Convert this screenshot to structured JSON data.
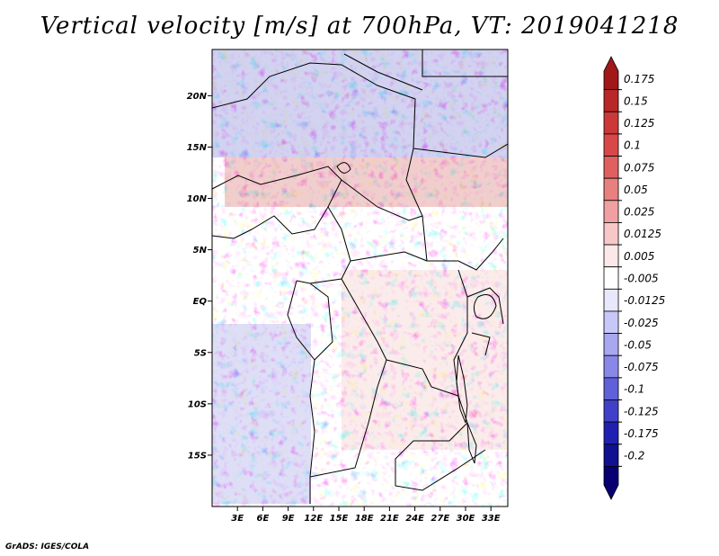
{
  "title": "Vertical velocity [m/s] at 700hPa, VT: 2019041218",
  "credit": "GrADS: IGES/COLA",
  "map": {
    "lat_labels": [
      "20N",
      "15N",
      "10N",
      "5N",
      "EQ",
      "5S",
      "10S",
      "15S"
    ],
    "lat_values": [
      20,
      15,
      10,
      5,
      0,
      -5,
      -10,
      -15
    ],
    "lon_labels": [
      "3E",
      "6E",
      "9E",
      "12E",
      "15E",
      "18E",
      "21E",
      "24E",
      "27E",
      "30E",
      "33E"
    ],
    "lon_values": [
      3,
      6,
      9,
      12,
      15,
      18,
      21,
      24,
      27,
      30,
      33
    ],
    "lon_range": [
      0,
      35
    ],
    "lat_range": [
      -20,
      24.5
    ]
  },
  "colorbar": {
    "levels": [
      "0.175",
      "0.15",
      "0.125",
      "0.1",
      "0.075",
      "0.05",
      "0.025",
      "0.0125",
      "0.005",
      "-0.005",
      "-0.0125",
      "-0.025",
      "-0.05",
      "-0.075",
      "-0.1",
      "-0.125",
      "-0.175",
      "-0.2"
    ],
    "colors": [
      "#a01818",
      "#b82828",
      "#cc3838",
      "#d84848",
      "#e06060",
      "#e88080",
      "#f0a0a0",
      "#f8c8c8",
      "#fce8e8",
      "#ffffff",
      "#e8e8fc",
      "#c8c8f8",
      "#a8a8f0",
      "#8888e8",
      "#6060d8",
      "#4040c8",
      "#2020b0",
      "#101090",
      "#080070"
    ]
  }
}
